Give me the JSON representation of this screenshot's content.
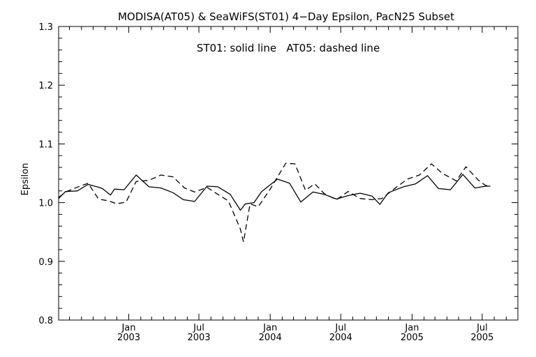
{
  "chart_data": {
    "type": "line",
    "title": "MODISA(AT05) & SeaWiFS(ST01) 4−Day Epsilon, PacN25 Subset",
    "annotation": "ST01: solid line   AT05: dashed line",
    "ylabel": "Epsilon",
    "xlabel": "",
    "ylim": [
      0.8,
      1.3
    ],
    "xlim": [
      "2002-07-04",
      "2005-10-01"
    ],
    "y_ticks": [
      "0.8",
      "0.9",
      "1.0",
      "1.1",
      "1.2",
      "1.3"
    ],
    "x_ticks": [
      {
        "date": "2003-01-01",
        "month": "Jan",
        "year": "2003"
      },
      {
        "date": "2003-07-01",
        "month": "Jul",
        "year": "2003"
      },
      {
        "date": "2004-01-01",
        "month": "Jan",
        "year": "2004"
      },
      {
        "date": "2004-07-01",
        "month": "Jul",
        "year": "2004"
      },
      {
        "date": "2005-01-01",
        "month": "Jan",
        "year": "2005"
      },
      {
        "date": "2005-07-01",
        "month": "Jul",
        "year": "2005"
      }
    ],
    "grid": false,
    "series": [
      {
        "name": "ST01",
        "style": "solid",
        "color": "#000000",
        "points": [
          [
            "2002-07-04",
            1.007
          ],
          [
            "2002-07-22",
            1.019
          ],
          [
            "2002-08-21",
            1.02
          ],
          [
            "2002-09-18",
            1.031
          ],
          [
            "2002-10-11",
            1.027
          ],
          [
            "2002-10-25",
            1.024
          ],
          [
            "2002-11-15",
            1.013
          ],
          [
            "2002-11-25",
            1.023
          ],
          [
            "2002-12-20",
            1.022
          ],
          [
            "2003-01-20",
            1.047
          ],
          [
            "2003-02-22",
            1.027
          ],
          [
            "2003-03-25",
            1.025
          ],
          [
            "2003-04-25",
            1.017
          ],
          [
            "2003-05-22",
            1.005
          ],
          [
            "2003-06-20",
            1.002
          ],
          [
            "2003-07-22",
            1.028
          ],
          [
            "2003-08-19",
            1.027
          ],
          [
            "2003-09-20",
            1.014
          ],
          [
            "2003-10-16",
            0.987
          ],
          [
            "2003-10-29",
            0.998
          ],
          [
            "2003-11-20",
            1.0
          ],
          [
            "2003-12-10",
            1.019
          ],
          [
            "2004-01-20",
            1.04
          ],
          [
            "2004-02-20",
            1.033
          ],
          [
            "2004-03-20",
            1.001
          ],
          [
            "2004-04-20",
            1.018
          ],
          [
            "2004-05-20",
            1.014
          ],
          [
            "2004-06-20",
            1.006
          ],
          [
            "2004-07-20",
            1.012
          ],
          [
            "2004-08-20",
            1.016
          ],
          [
            "2004-09-20",
            1.011
          ],
          [
            "2004-10-10",
            0.997
          ],
          [
            "2004-11-01",
            1.017
          ],
          [
            "2004-12-10",
            1.027
          ],
          [
            "2005-01-10",
            1.032
          ],
          [
            "2005-02-10",
            1.046
          ],
          [
            "2005-03-10",
            1.024
          ],
          [
            "2005-04-10",
            1.022
          ],
          [
            "2005-05-12",
            1.048
          ],
          [
            "2005-06-12",
            1.025
          ],
          [
            "2005-07-10",
            1.028
          ],
          [
            "2005-07-22",
            1.028
          ]
        ]
      },
      {
        "name": "AT05",
        "style": "dashed",
        "color": "#000000",
        "points": [
          [
            "2002-07-04",
            1.009
          ],
          [
            "2002-07-25",
            1.019
          ],
          [
            "2002-08-20",
            1.026
          ],
          [
            "2002-09-18",
            1.033
          ],
          [
            "2002-10-15",
            1.006
          ],
          [
            "2002-11-10",
            1.003
          ],
          [
            "2002-12-01",
            0.998
          ],
          [
            "2002-12-25",
            1.001
          ],
          [
            "2003-01-20",
            1.036
          ],
          [
            "2003-02-22",
            1.038
          ],
          [
            "2003-03-25",
            1.047
          ],
          [
            "2003-04-25",
            1.044
          ],
          [
            "2003-05-25",
            1.025
          ],
          [
            "2003-06-20",
            1.018
          ],
          [
            "2003-07-22",
            1.026
          ],
          [
            "2003-08-19",
            1.014
          ],
          [
            "2003-09-15",
            1.003
          ],
          [
            "2003-10-16",
            0.955
          ],
          [
            "2003-10-24",
            0.933
          ],
          [
            "2003-11-10",
            0.998
          ],
          [
            "2003-12-01",
            0.993
          ],
          [
            "2004-01-01",
            1.023
          ],
          [
            "2004-02-10",
            1.067
          ],
          [
            "2004-03-05",
            1.066
          ],
          [
            "2004-04-01",
            1.021
          ],
          [
            "2004-04-25",
            1.032
          ],
          [
            "2004-05-20",
            1.015
          ],
          [
            "2004-06-20",
            1.005
          ],
          [
            "2004-07-20",
            1.019
          ],
          [
            "2004-08-20",
            1.007
          ],
          [
            "2004-09-20",
            1.005
          ],
          [
            "2004-10-15",
            1.007
          ],
          [
            "2004-11-15",
            1.023
          ],
          [
            "2004-12-20",
            1.04
          ],
          [
            "2005-01-20",
            1.047
          ],
          [
            "2005-02-20",
            1.066
          ],
          [
            "2005-03-20",
            1.05
          ],
          [
            "2005-04-25",
            1.037
          ],
          [
            "2005-05-20",
            1.061
          ],
          [
            "2005-06-20",
            1.039
          ],
          [
            "2005-07-10",
            1.029
          ],
          [
            "2005-07-22",
            1.029
          ]
        ]
      }
    ]
  }
}
